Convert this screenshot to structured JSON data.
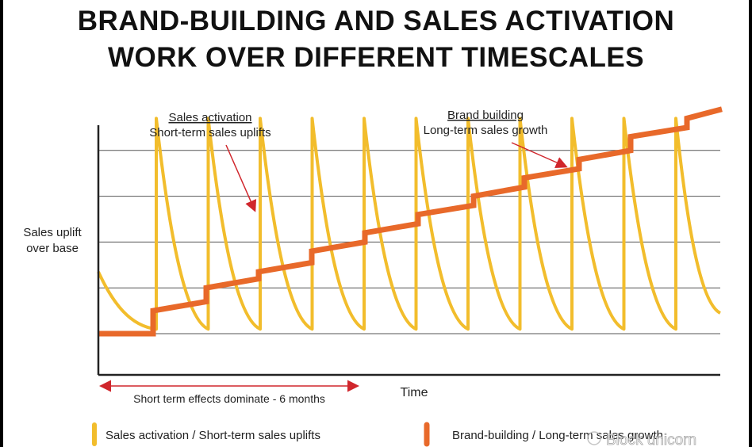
{
  "title": {
    "line1": "BRAND-BUILDING AND SALES ACTIVATION",
    "line2": "WORK OVER DIFFERENT TIMESCALES"
  },
  "annotations": {
    "sales_title": "Sales activation",
    "sales_sub": "Short-term sales uplifts",
    "brand_title": "Brand building",
    "brand_sub": "Long-term sales growth"
  },
  "axes": {
    "ylabel_line1": "Sales uplift",
    "ylabel_line2": "over base",
    "xlabel": "Time"
  },
  "range_label": "Short term effects dominate - 6 months",
  "legend": {
    "sales": "Sales activation / Short-term sales uplifts",
    "brand": "Brand-building / Long-term sales growth"
  },
  "watermark": "Block unicorn",
  "colors": {
    "brand": "#e8692a",
    "sales": "#f2bd2c",
    "arrow": "#d0262c",
    "grid": "#555555",
    "axis": "#222222"
  },
  "chart_data": {
    "type": "line",
    "xlabel": "Time",
    "ylabel": "Sales uplift over base",
    "grid": true,
    "series": [
      {
        "name": "Sales activation / Short-term sales uplifts",
        "pattern": "sawtooth",
        "spike_count": 11,
        "peak": 4.7,
        "trough": 0.1
      },
      {
        "name": "Brand-building / Long-term sales growth",
        "pattern": "staircase",
        "levels": [
          0,
          0.5,
          1.0,
          1.35,
          1.8,
          2.2,
          2.6,
          3.0,
          3.4,
          3.8,
          4.3,
          4.7
        ]
      }
    ]
  }
}
